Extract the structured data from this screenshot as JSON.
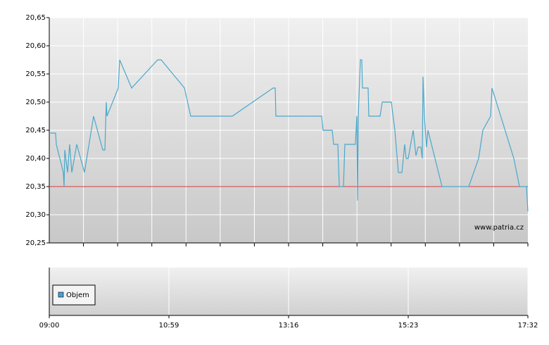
{
  "chart_data": [
    {
      "type": "line",
      "xlim": [
        0,
        100
      ],
      "ylim": [
        20.25,
        20.65
      ],
      "yticks": [
        {
          "value": 20.25,
          "label": "20,25"
        },
        {
          "value": 20.3,
          "label": "20,30"
        },
        {
          "value": 20.35,
          "label": "20,35"
        },
        {
          "value": 20.4,
          "label": "20,40"
        },
        {
          "value": 20.45,
          "label": "20,45"
        },
        {
          "value": 20.5,
          "label": "20,50"
        },
        {
          "value": 20.55,
          "label": "20,55"
        },
        {
          "value": 20.6,
          "label": "20,60"
        },
        {
          "value": 20.65,
          "label": "20,65"
        }
      ],
      "grid": true,
      "reference_line": {
        "value": 20.35,
        "color": "#e03a3a"
      },
      "watermark": "www.patria.cz",
      "series": [
        {
          "color": "#4aa8cc",
          "x": [
            0,
            1.32,
            1.47,
            2.94,
            3.09,
            3.24,
            3.82,
            4.26,
            4.71,
            5.74,
            7.35,
            9.26,
            11.18,
            11.62,
            11.91,
            12.06,
            14.41,
            14.71,
            17.21,
            22.65,
            23.38,
            28.24,
            29.56,
            38.24,
            46.76,
            47.21,
            47.35,
            56.91,
            57.21,
            59.12,
            59.41,
            60.29,
            60.59,
            61.47,
            61.76,
            63.97,
            64.26,
            64.41,
            64.56,
            65,
            65.29,
            65.44,
            66.62,
            66.76,
            69.12,
            69.56,
            71.47,
            72.21,
            72.94,
            73.68,
            74.26,
            74.56,
            75,
            76.03,
            76.62,
            77.06,
            77.65,
            77.94,
            78.09,
            78.38,
            78.82,
            79.12,
            82.06,
            87.65,
            89.71,
            90.59,
            92.21,
            92.5,
            97.06,
            98.24,
            99.71,
            100
          ],
          "values": [
            20.445,
            20.445,
            20.425,
            20.375,
            20.35,
            20.415,
            20.375,
            20.425,
            20.375,
            20.425,
            20.375,
            20.475,
            20.415,
            20.415,
            20.5,
            20.475,
            20.525,
            20.575,
            20.525,
            20.575,
            20.575,
            20.525,
            20.475,
            20.475,
            20.525,
            20.525,
            20.475,
            20.475,
            20.45,
            20.45,
            20.425,
            20.425,
            20.35,
            20.35,
            20.425,
            20.425,
            20.475,
            20.325,
            20.475,
            20.575,
            20.575,
            20.525,
            20.525,
            20.475,
            20.475,
            20.5,
            20.5,
            20.45,
            20.375,
            20.375,
            20.425,
            20.4,
            20.4,
            20.45,
            20.405,
            20.42,
            20.42,
            20.4,
            20.545,
            20.475,
            20.42,
            20.45,
            20.35,
            20.35,
            20.4,
            20.45,
            20.475,
            20.525,
            20.4,
            20.35,
            20.35,
            20.306
          ]
        }
      ]
    },
    {
      "type": "bar",
      "xlim": [
        0,
        100
      ],
      "xticks": [
        {
          "value": 0,
          "label": "09:00"
        },
        {
          "value": 25,
          "label": "10:59"
        },
        {
          "value": 50,
          "label": "13:16"
        },
        {
          "value": 75,
          "label": "15:23"
        },
        {
          "value": 100,
          "label": "17:32"
        }
      ],
      "series": [
        {
          "name": "Objem",
          "color": "#4a9fd0",
          "values": []
        }
      ]
    }
  ]
}
